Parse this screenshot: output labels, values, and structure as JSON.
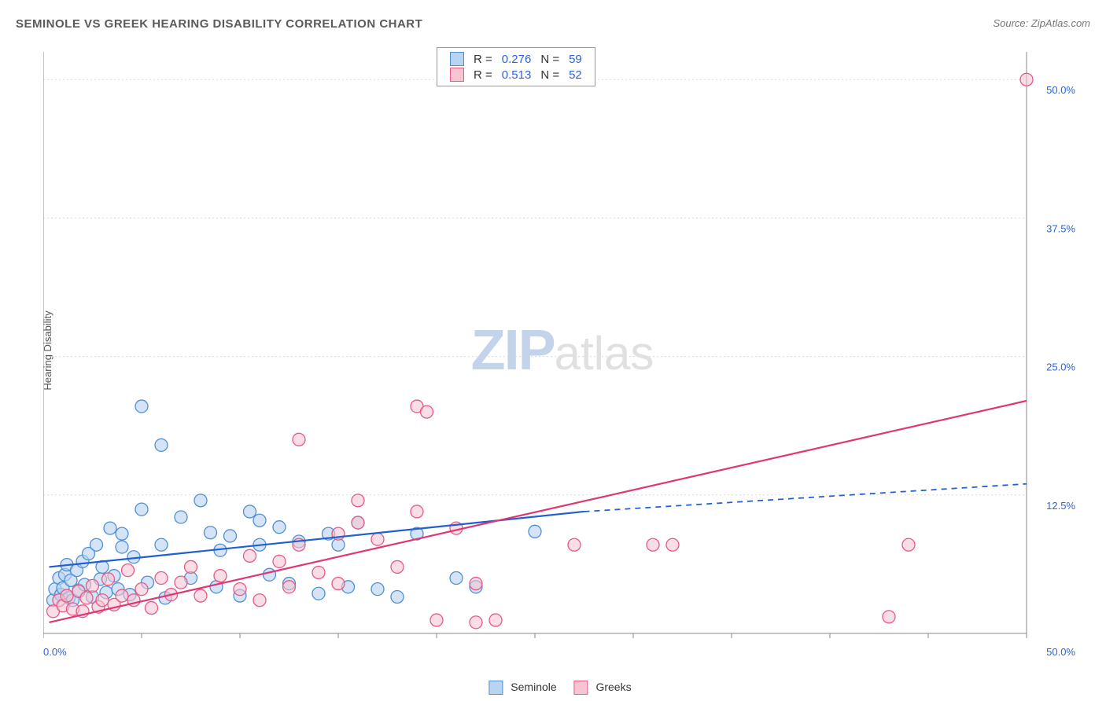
{
  "title": "SEMINOLE VS GREEK HEARING DISABILITY CORRELATION CHART",
  "source": "Source: ZipAtlas.com",
  "ylabel": "Hearing Disability",
  "watermark": {
    "zip": "ZIP",
    "atlas": "atlas"
  },
  "chart": {
    "type": "scatter",
    "background_color": "#ffffff",
    "grid_color": "#d9d9d9",
    "axis_color": "#888888",
    "tick_color": "#888888",
    "axis_label_color": "#2e62d9",
    "axis_label_fontsize": 14,
    "title_fontsize": 15,
    "xlim": [
      0,
      50
    ],
    "ylim": [
      0,
      52.5
    ],
    "ytick_step": 12.5,
    "ytick_labels": [
      "12.5%",
      "25.0%",
      "37.5%",
      "50.0%"
    ],
    "x_corner_labels": [
      "0.0%",
      "50.0%"
    ],
    "xtick_positions": [
      0,
      5,
      10,
      15,
      20,
      25,
      30,
      35,
      40,
      45,
      50
    ],
    "marker_radius": 8,
    "marker_stroke_width": 1.3,
    "trend_line_width": 2.2
  },
  "series": [
    {
      "name": "Seminole",
      "fill": "#b9d4f0",
      "stroke": "#4f8fd6",
      "fill_opacity": 0.62,
      "r_value": "0.276",
      "n_value": "59",
      "trend": {
        "x1": 0.3,
        "y1": 6.0,
        "x2": 27.5,
        "y2": 11.0,
        "xd2": 50,
        "yd2": 13.5,
        "color": "#1f5fd0",
        "dash_color": "#1f5fd0"
      },
      "points": [
        [
          0.5,
          3.0
        ],
        [
          0.6,
          4.0
        ],
        [
          0.8,
          5.0
        ],
        [
          0.9,
          3.5
        ],
        [
          1.0,
          4.1
        ],
        [
          1.1,
          5.3
        ],
        [
          1.2,
          6.2
        ],
        [
          1.3,
          3.2
        ],
        [
          1.4,
          4.8
        ],
        [
          1.5,
          3.0
        ],
        [
          1.7,
          5.7
        ],
        [
          1.8,
          3.9
        ],
        [
          2.0,
          6.5
        ],
        [
          2.1,
          4.4
        ],
        [
          2.3,
          7.2
        ],
        [
          2.5,
          3.3
        ],
        [
          2.7,
          8.0
        ],
        [
          2.9,
          4.9
        ],
        [
          3.0,
          6.0
        ],
        [
          3.2,
          3.7
        ],
        [
          3.4,
          9.5
        ],
        [
          3.6,
          5.2
        ],
        [
          3.8,
          4.0
        ],
        [
          4.0,
          7.8
        ],
        [
          4.0,
          9.0
        ],
        [
          4.4,
          3.5
        ],
        [
          4.6,
          6.9
        ],
        [
          5.0,
          11.2
        ],
        [
          5.0,
          20.5
        ],
        [
          5.3,
          4.6
        ],
        [
          6.0,
          8.0
        ],
        [
          6.0,
          17.0
        ],
        [
          6.2,
          3.2
        ],
        [
          7.0,
          10.5
        ],
        [
          7.5,
          5.0
        ],
        [
          8.0,
          12.0
        ],
        [
          8.5,
          9.1
        ],
        [
          8.8,
          4.2
        ],
        [
          9.0,
          7.5
        ],
        [
          9.5,
          8.8
        ],
        [
          10.0,
          3.4
        ],
        [
          10.5,
          11.0
        ],
        [
          11.0,
          10.2
        ],
        [
          11.0,
          8.0
        ],
        [
          11.5,
          5.3
        ],
        [
          12.0,
          9.6
        ],
        [
          12.5,
          4.5
        ],
        [
          13.0,
          8.3
        ],
        [
          14.0,
          3.6
        ],
        [
          14.5,
          9.0
        ],
        [
          15.0,
          8.0
        ],
        [
          15.5,
          4.2
        ],
        [
          16.0,
          10.0
        ],
        [
          17.0,
          4.0
        ],
        [
          18.0,
          3.3
        ],
        [
          19.0,
          9.0
        ],
        [
          21.0,
          5.0
        ],
        [
          22.0,
          4.2
        ],
        [
          25.0,
          9.2
        ]
      ]
    },
    {
      "name": "Greeks",
      "fill": "#f7c4d2",
      "stroke": "#e55a87",
      "fill_opacity": 0.58,
      "r_value": "0.513",
      "n_value": "52",
      "trend": {
        "x1": 0.3,
        "y1": 1.0,
        "x2": 50,
        "y2": 21.0,
        "color": "#e03673"
      },
      "points": [
        [
          0.5,
          2.0
        ],
        [
          0.8,
          3.0
        ],
        [
          1.0,
          2.5
        ],
        [
          1.2,
          3.4
        ],
        [
          1.5,
          2.2
        ],
        [
          1.8,
          3.8
        ],
        [
          2.0,
          2.0
        ],
        [
          2.2,
          3.2
        ],
        [
          2.5,
          4.3
        ],
        [
          2.8,
          2.4
        ],
        [
          3.0,
          3.0
        ],
        [
          3.3,
          4.9
        ],
        [
          3.6,
          2.6
        ],
        [
          4.0,
          3.4
        ],
        [
          4.3,
          5.7
        ],
        [
          4.6,
          3.0
        ],
        [
          5.0,
          4.0
        ],
        [
          5.5,
          2.3
        ],
        [
          6.0,
          5.0
        ],
        [
          6.5,
          3.5
        ],
        [
          7.0,
          4.6
        ],
        [
          7.5,
          6.0
        ],
        [
          8.0,
          3.4
        ],
        [
          9.0,
          5.2
        ],
        [
          10.0,
          4.0
        ],
        [
          10.5,
          7.0
        ],
        [
          11.0,
          3.0
        ],
        [
          12.0,
          6.5
        ],
        [
          12.5,
          4.2
        ],
        [
          13.0,
          8.0
        ],
        [
          13.0,
          17.5
        ],
        [
          14.0,
          5.5
        ],
        [
          15.0,
          9.0
        ],
        [
          15.0,
          4.5
        ],
        [
          16.0,
          10.0
        ],
        [
          16.0,
          12.0
        ],
        [
          17.0,
          8.5
        ],
        [
          18.0,
          6.0
        ],
        [
          19.0,
          11.0
        ],
        [
          19.0,
          20.5
        ],
        [
          19.5,
          20.0
        ],
        [
          20.0,
          1.2
        ],
        [
          21.0,
          9.5
        ],
        [
          22.0,
          4.5
        ],
        [
          22.0,
          1.0
        ],
        [
          23.0,
          1.2
        ],
        [
          27.0,
          8.0
        ],
        [
          31.0,
          8.0
        ],
        [
          32.0,
          8.0
        ],
        [
          43.0,
          1.5
        ],
        [
          44.0,
          8.0
        ],
        [
          50.0,
          50.0
        ]
      ]
    }
  ],
  "legend_top": {
    "r_label": "R =",
    "n_label": "N ="
  },
  "legend_bottom": [
    {
      "label": "Seminole",
      "fill": "#b9d4f0",
      "stroke": "#4f8fd6"
    },
    {
      "label": "Greeks",
      "fill": "#f7c4d2",
      "stroke": "#e55a87"
    }
  ]
}
